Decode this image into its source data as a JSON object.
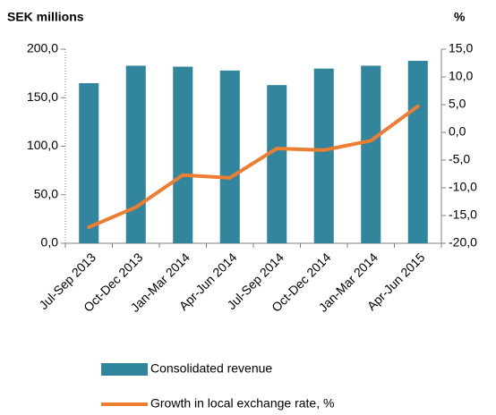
{
  "chart_data": {
    "type": "bar-line",
    "ylabel": "SEK millions",
    "y2label": "%",
    "categories": [
      "Jul-Sep 2013",
      "Oct-Dec 2013",
      "Jan-Mar 2014",
      "Apr-Jun 2014",
      "Jul-Sep 2014",
      "Oct-Dec 2014",
      "Jan-Mar 2014",
      "Apr-Jun 2015"
    ],
    "series": [
      {
        "name": "Consolidated revenue",
        "type": "bar",
        "color": "#31859c",
        "axis": "y",
        "values": [
          165,
          183,
          182,
          178,
          163,
          180,
          183,
          188
        ]
      },
      {
        "name": "Growth in local exchange rate, %",
        "type": "line",
        "color": "#ed7d31",
        "axis": "y2",
        "values": [
          -17.1,
          -13.5,
          -7.7,
          -8.2,
          -2.9,
          -3.2,
          -1.5,
          4.7
        ]
      }
    ],
    "ylim": [
      0,
      200
    ],
    "yticks": [
      {
        "value": 0,
        "label": "0,0"
      },
      {
        "value": 50,
        "label": "50,0"
      },
      {
        "value": 100,
        "label": "100,0"
      },
      {
        "value": 150,
        "label": "150,0"
      },
      {
        "value": 200,
        "label": "200,0"
      }
    ],
    "y2lim": [
      -20,
      15
    ],
    "y2ticks": [
      {
        "value": -20,
        "label": "-20,0"
      },
      {
        "value": -15,
        "label": "-15,0"
      },
      {
        "value": -10,
        "label": "-10,0"
      },
      {
        "value": -5,
        "label": "-5,0"
      },
      {
        "value": 0,
        "label": "0,0"
      },
      {
        "value": 5,
        "label": "5,0"
      },
      {
        "value": 10,
        "label": "10,0"
      },
      {
        "value": 15,
        "label": "15,0"
      }
    ],
    "grid": false
  }
}
